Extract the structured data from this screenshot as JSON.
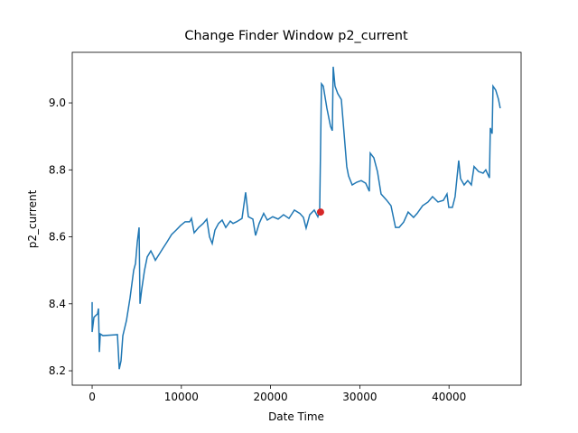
{
  "chart_data": {
    "type": "line",
    "title": "Change Finder Window p2_current",
    "x_label": "Date Time",
    "y_label": "p2_current",
    "xlim": [
      -2230,
      48080
    ],
    "ylim": [
      8.157,
      9.151
    ],
    "xticks": [
      0,
      10000,
      20000,
      30000,
      40000
    ],
    "yticks": [
      8.2,
      8.4,
      8.6,
      8.8,
      {
        "value": 9,
        "label": "9.0"
      }
    ],
    "series": [
      {
        "color": "#1f77b4",
        "x": [
          0,
          0,
          202,
          607,
          708,
          810,
          911,
          1214,
          2834,
          3036,
          3238,
          3441,
          3846,
          4250,
          4655,
          4858,
          5060,
          5262,
          5364,
          5566,
          5870,
          6173,
          6578,
          6882,
          7084,
          7489,
          7894,
          8400,
          8906,
          9412,
          9918,
          10424,
          10930,
          11132,
          11436,
          11942,
          12448,
          12852,
          13156,
          13460,
          13763,
          14168,
          14573,
          14978,
          15484,
          15787,
          16192,
          16799,
          17204,
          17508,
          18014,
          18317,
          18722,
          19228,
          19633,
          20240,
          20847,
          21454,
          22062,
          22669,
          23276,
          23681,
          23984,
          24389,
          24895,
          25300,
          25502,
          25705,
          25907,
          26312,
          26717,
          26919,
          27020,
          27223,
          27526,
          27931,
          28134,
          28538,
          28741,
          29146,
          29652,
          30158,
          30664,
          31068,
          31170,
          31574,
          31979,
          32384,
          32991,
          33497,
          34003,
          34408,
          34914,
          35420,
          36027,
          36432,
          37039,
          37646,
          38152,
          38760,
          39367,
          39772,
          39974,
          40379,
          40682,
          41087,
          41290,
          41694,
          42099,
          42504,
          42808,
          43314,
          43820,
          44123,
          44528,
          44629,
          44832,
          44933,
          45236,
          45540,
          45742
        ],
        "values": [
          8.405,
          8.316,
          8.36,
          8.37,
          8.386,
          8.256,
          8.31,
          8.305,
          8.308,
          8.205,
          8.23,
          8.305,
          8.35,
          8.418,
          8.5,
          8.52,
          8.584,
          8.628,
          8.4,
          8.445,
          8.5,
          8.54,
          8.558,
          8.542,
          8.53,
          8.547,
          8.564,
          8.585,
          8.607,
          8.62,
          8.634,
          8.645,
          8.645,
          8.655,
          8.612,
          8.628,
          8.64,
          8.653,
          8.6,
          8.58,
          8.62,
          8.64,
          8.65,
          8.628,
          8.647,
          8.64,
          8.645,
          8.655,
          8.733,
          8.66,
          8.653,
          8.604,
          8.64,
          8.67,
          8.65,
          8.66,
          8.653,
          8.666,
          8.655,
          8.68,
          8.67,
          8.658,
          8.626,
          8.666,
          8.68,
          8.66,
          8.677,
          9.057,
          9.05,
          8.984,
          8.93,
          8.917,
          9.108,
          9.05,
          9.028,
          9.01,
          8.943,
          8.81,
          8.782,
          8.755,
          8.763,
          8.768,
          8.76,
          8.736,
          8.85,
          8.836,
          8.795,
          8.728,
          8.71,
          8.693,
          8.628,
          8.628,
          8.644,
          8.674,
          8.658,
          8.67,
          8.693,
          8.704,
          8.72,
          8.704,
          8.709,
          8.728,
          8.688,
          8.688,
          8.72,
          8.828,
          8.774,
          8.755,
          8.768,
          8.755,
          8.81,
          8.795,
          8.79,
          8.8,
          8.776,
          8.925,
          8.908,
          9.05,
          9.038,
          9.011,
          8.984
        ]
      },
      {
        "type": "scatter",
        "color": "#d62728",
        "x": [
          25600
        ],
        "values": [
          8.674
        ]
      }
    ]
  }
}
